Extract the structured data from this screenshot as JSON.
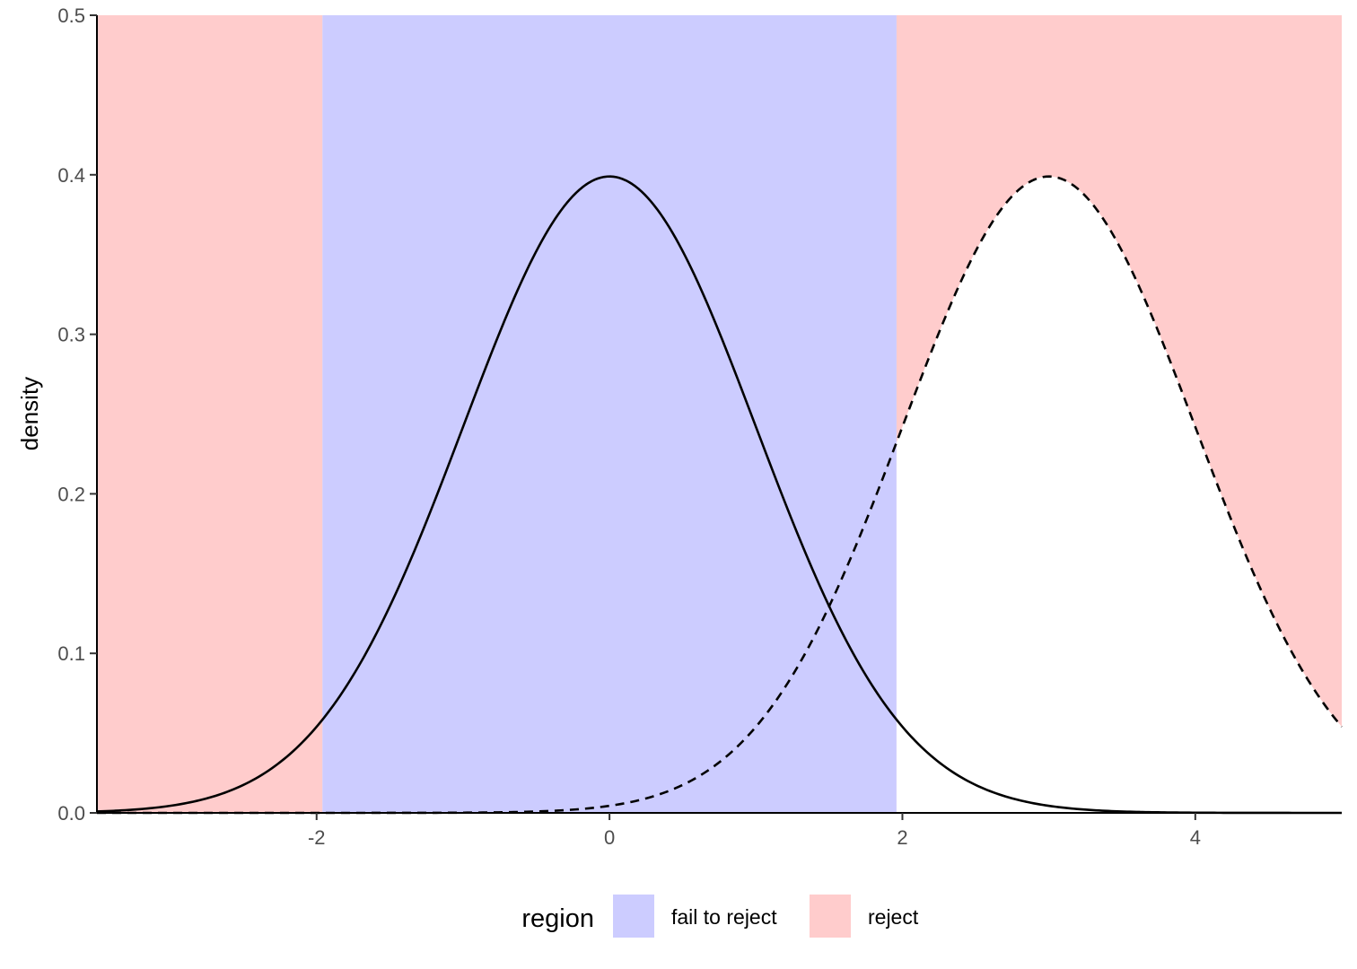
{
  "chart_data": {
    "type": "line",
    "title": "",
    "xlabel": "",
    "ylabel": "density",
    "xlim": [
      -3.5,
      5
    ],
    "ylim": [
      0,
      0.5
    ],
    "x_ticks": [
      -2,
      0,
      2,
      4
    ],
    "x_tick_labels": [
      "-2",
      "0",
      "2",
      "4"
    ],
    "y_ticks": [
      0,
      0.1,
      0.2,
      0.3,
      0.4,
      0.5
    ],
    "y_tick_labels": [
      "0.0",
      "0.1",
      "0.2",
      "0.3",
      "0.4",
      "0.5"
    ],
    "grid": false,
    "critical_values": [
      -1.96,
      1.96
    ],
    "regions": [
      {
        "region": "reject",
        "x_range": [
          -3.5,
          -1.96
        ],
        "color": "#ffcccc"
      },
      {
        "region": "fail to reject",
        "x_range": [
          -1.96,
          1.96
        ],
        "color": "#ccccff"
      },
      {
        "region": "reject",
        "x_range": [
          1.96,
          5
        ],
        "color": "#ffcccc"
      }
    ],
    "series": [
      {
        "distribution": "normal",
        "mean": 0,
        "sd": 1,
        "line_style": "solid",
        "color": "#000000"
      },
      {
        "distribution": "normal",
        "mean": 3,
        "sd": 1,
        "line_style": "dashed",
        "color": "#000000"
      }
    ],
    "legend": {
      "position": "bottom",
      "title": "region",
      "entries": [
        {
          "label": "fail to reject",
          "color": "#ccccff"
        },
        {
          "label": "reject",
          "color": "#ffcccc"
        }
      ]
    }
  }
}
